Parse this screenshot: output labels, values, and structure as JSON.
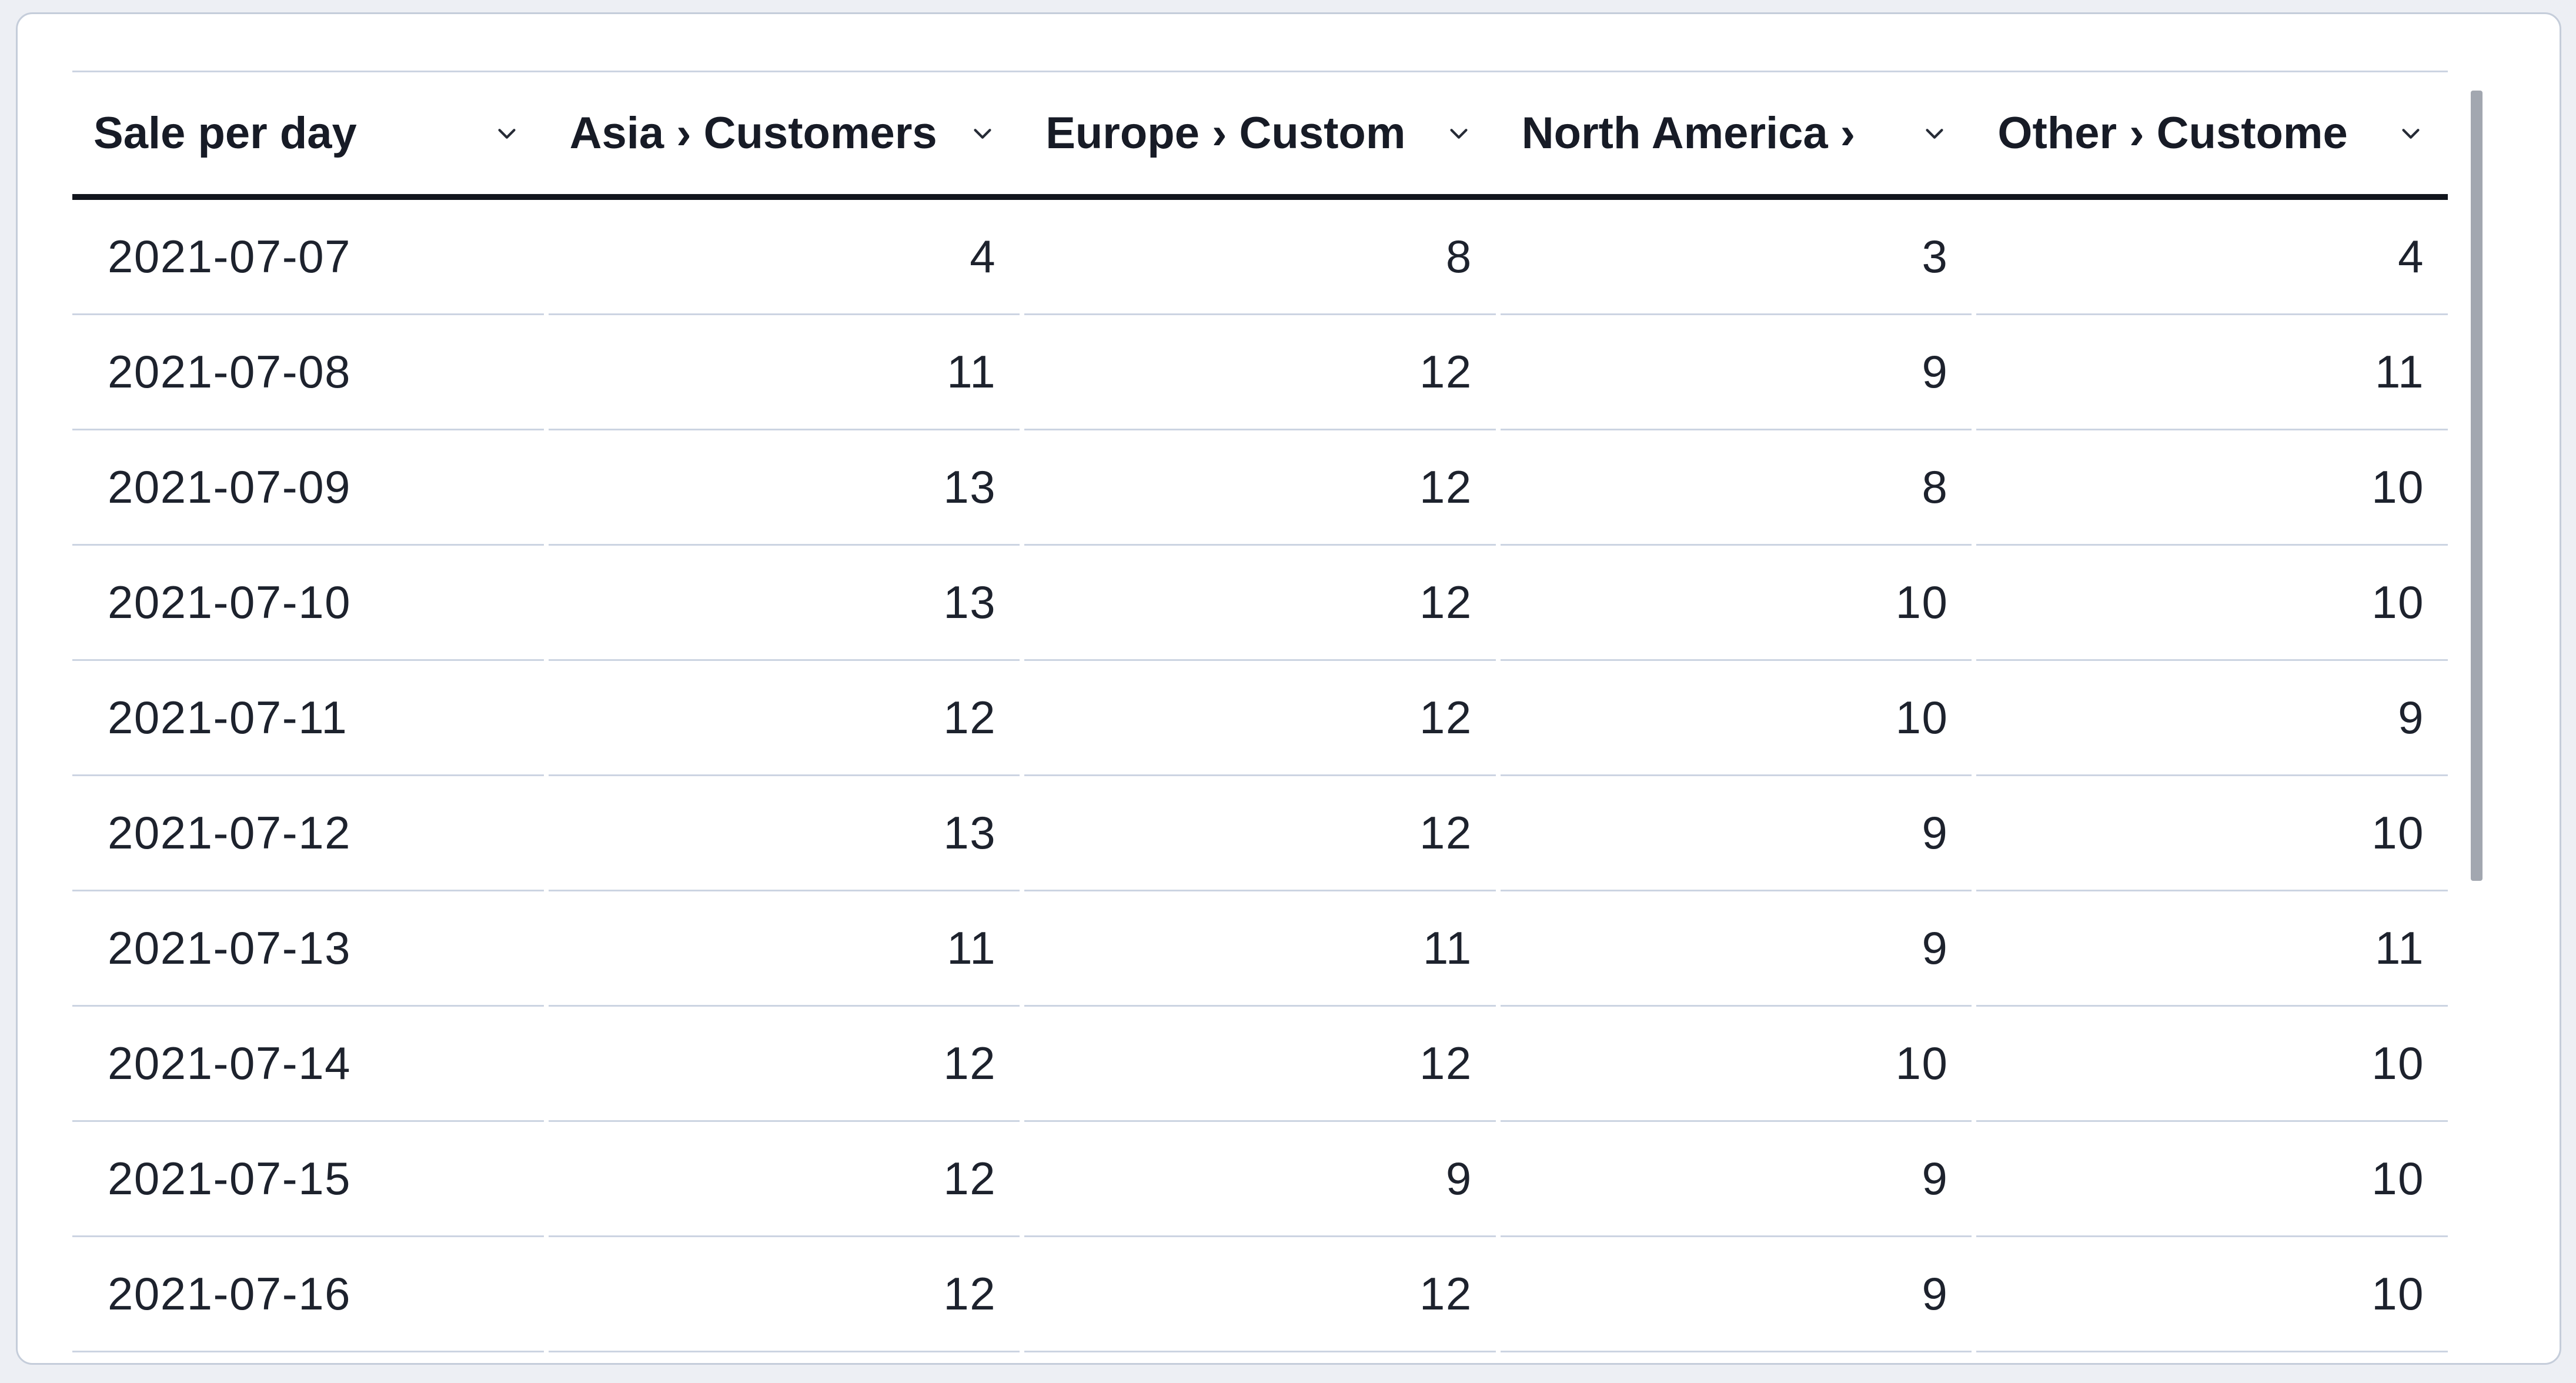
{
  "card": {
    "type": "table-card"
  },
  "table": {
    "columns": [
      {
        "id": "sale-per-day",
        "label": "Sale per day",
        "align": "left",
        "sort_icon": "chevron-down-icon"
      },
      {
        "id": "asia",
        "label": "Asia › Customers",
        "align": "right",
        "sort_icon": "chevron-down-icon"
      },
      {
        "id": "europe",
        "label": "Europe › Custom",
        "align": "right",
        "sort_icon": "chevron-down-icon"
      },
      {
        "id": "north-america",
        "label": "North America ›",
        "align": "right",
        "sort_icon": "chevron-down-icon"
      },
      {
        "id": "other",
        "label": "Other › Custome",
        "align": "right",
        "sort_icon": "chevron-down-icon"
      }
    ],
    "rows": [
      {
        "date": "2021-07-07",
        "values": [
          4,
          8,
          3,
          4
        ]
      },
      {
        "date": "2021-07-08",
        "values": [
          11,
          12,
          9,
          11
        ]
      },
      {
        "date": "2021-07-09",
        "values": [
          13,
          12,
          8,
          10
        ]
      },
      {
        "date": "2021-07-10",
        "values": [
          13,
          12,
          10,
          10
        ]
      },
      {
        "date": "2021-07-11",
        "values": [
          12,
          12,
          10,
          9
        ]
      },
      {
        "date": "2021-07-12",
        "values": [
          13,
          12,
          9,
          10
        ]
      },
      {
        "date": "2021-07-13",
        "values": [
          11,
          11,
          9,
          11
        ]
      },
      {
        "date": "2021-07-14",
        "values": [
          12,
          12,
          10,
          10
        ]
      },
      {
        "date": "2021-07-15",
        "values": [
          12,
          9,
          9,
          10
        ]
      },
      {
        "date": "2021-07-16",
        "values": [
          12,
          12,
          9,
          10
        ]
      }
    ]
  },
  "scrollbar": {
    "orientation": "vertical",
    "thumb_color": "#a2a7b0"
  },
  "colors": {
    "page_background": "#edeff4",
    "card_background": "#ffffff",
    "card_border": "#c5cdda",
    "header_text": "#171b26",
    "cell_text": "#1d222d",
    "row_divider": "#ccd4e2",
    "header_underline": "#11151d"
  }
}
